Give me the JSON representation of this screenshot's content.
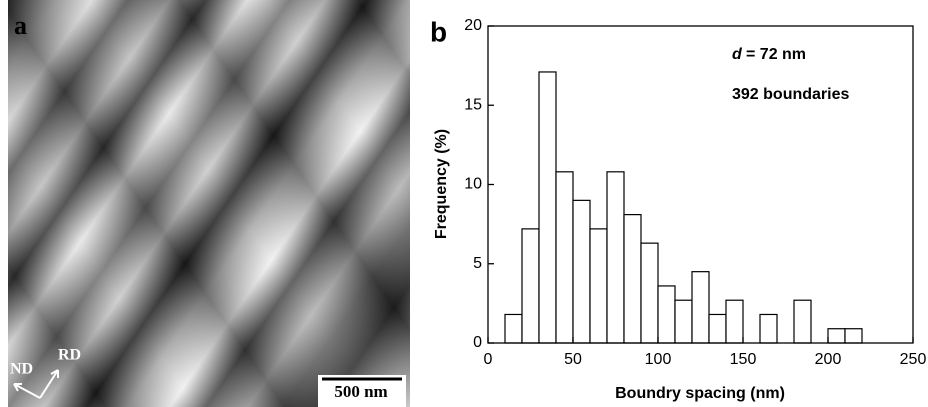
{
  "image_panel": {
    "label": "a",
    "scale_bar": "500 nm",
    "directions": [
      "ND",
      "RD"
    ]
  },
  "chart_data": {
    "type": "histogram",
    "panel_label": "b",
    "x_label": "Boundry spacing (nm)",
    "y_label": "Frequency (%)",
    "annotation_symbol": "d",
    "annotations": [
      "= 72 nm",
      "392 boundaries"
    ],
    "bins": [
      10,
      20,
      30,
      40,
      50,
      60,
      70,
      80,
      90,
      100,
      110,
      120,
      130,
      140,
      150,
      160,
      170,
      180,
      190,
      200,
      210,
      220
    ],
    "values": [
      1.8,
      7.2,
      17.1,
      10.8,
      9.0,
      7.2,
      10.8,
      8.1,
      6.3,
      3.6,
      2.7,
      4.5,
      1.8,
      2.7,
      0,
      1.8,
      0,
      2.7,
      0,
      0.9,
      0.9
    ],
    "color": "#ffffff",
    "xlim": [
      0,
      250
    ],
    "xticks": [
      0,
      50,
      100,
      150,
      200,
      250
    ],
    "ylim": [
      0,
      20
    ],
    "yticks": [
      0,
      5,
      10,
      15,
      20
    ]
  }
}
